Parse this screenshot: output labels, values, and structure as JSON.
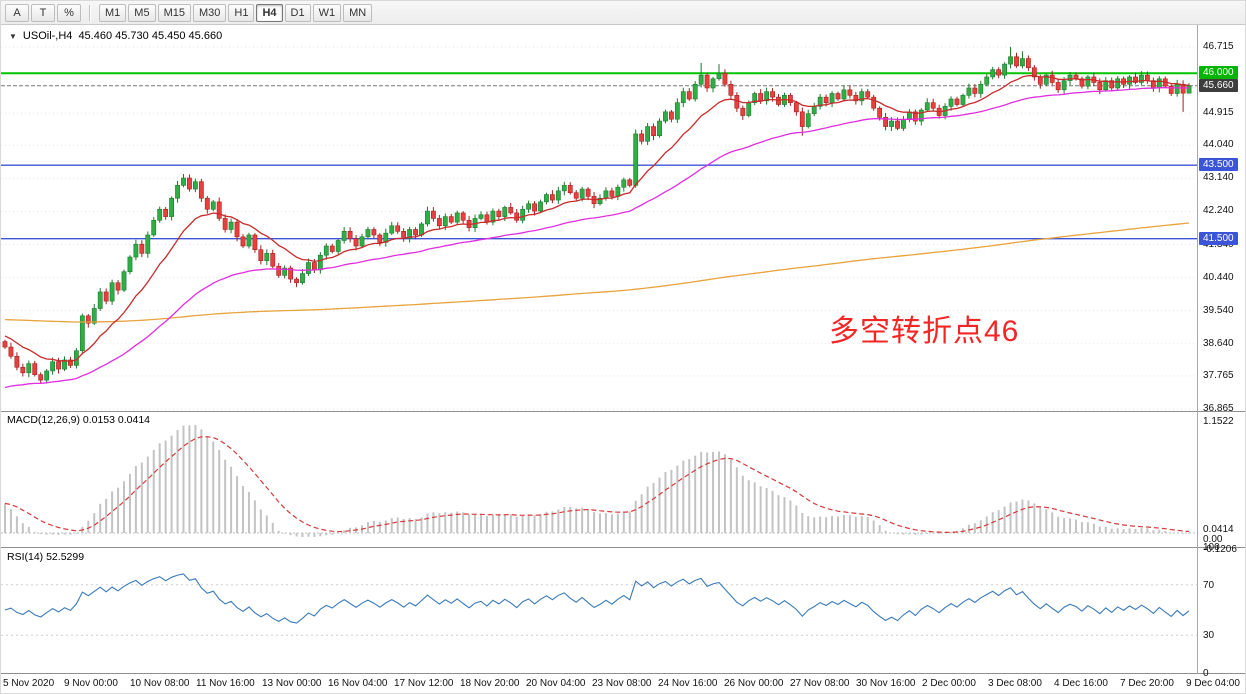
{
  "toolbar": {
    "tools": [
      {
        "name": "cursor-tool",
        "label": "A"
      },
      {
        "name": "text-tool",
        "label": "T"
      },
      {
        "name": "percent-tool",
        "label": "%"
      }
    ],
    "timeframes": [
      "M1",
      "M5",
      "M15",
      "M30",
      "H1",
      "H4",
      "D1",
      "W1",
      "MN"
    ],
    "active_timeframe": "H4"
  },
  "chart": {
    "title": {
      "symbol": "USOil-,H4",
      "ohlc": "45.460 45.730 45.450 45.660"
    },
    "annotation": {
      "text": "多空转折点46",
      "color": "#f42525"
    },
    "price_axis": {
      "labels": [
        "46.715",
        "44.915",
        "44.040",
        "43.140",
        "42.240",
        "41.340",
        "40.440",
        "39.540",
        "38.640",
        "37.765",
        "36.865"
      ],
      "badges": [
        {
          "value": "46.000",
          "color": "#00b400"
        },
        {
          "value": "45.660",
          "color": "#3d3d3d"
        },
        {
          "value": "43.500",
          "color": "#3c55d8"
        },
        {
          "value": "41.500",
          "color": "#3c55d8"
        }
      ]
    },
    "hlines": [
      {
        "price": 46.0,
        "color": "#00c400",
        "width": 2
      },
      {
        "price": 43.5,
        "color": "#3c55d8",
        "width": 1.4
      },
      {
        "price": 41.5,
        "color": "#3c55d8",
        "width": 1.4
      }
    ],
    "current_price": 45.66,
    "colors": {
      "up": "#2fae45",
      "up_border": "#1d7a2e",
      "down": "#e8403f",
      "down_border": "#a61f1f",
      "ma_fast": "#c92a2a",
      "ma_mid": "#e02ee0",
      "ma_slow": "#e8a33d"
    }
  },
  "macd": {
    "label": "MACD(12,26,9) 0.0153 0.0414",
    "axis_labels": [
      "1.1522",
      "0.0414",
      "0.00",
      "-0.1206"
    ]
  },
  "rsi": {
    "label": "RSI(14) 52.5299",
    "axis_labels": [
      "100",
      "70",
      "30",
      "0"
    ]
  },
  "time_axis": {
    "labels": [
      "5 Nov 2020",
      "9 Nov 00:00",
      "10 Nov 08:00",
      "11 Nov 16:00",
      "13 Nov 00:00",
      "16 Nov 04:00",
      "17 Nov 12:00",
      "18 Nov 20:00",
      "20 Nov 04:00",
      "23 Nov 08:00",
      "24 Nov 16:00",
      "26 Nov 00:00",
      "27 Nov 08:00",
      "30 Nov 16:00",
      "2 Dec 00:00",
      "3 Dec 08:00",
      "4 Dec 16:00",
      "7 Dec 20:00",
      "9 Dec 04:00"
    ]
  },
  "chart_data": {
    "type": "candlestick",
    "symbol": "USOil",
    "timeframe": "H4",
    "last_ohlc": {
      "open": 45.46,
      "high": 45.73,
      "low": 45.45,
      "close": 45.66
    },
    "horizontal_levels": [
      46.0,
      43.5,
      41.5
    ],
    "price_range_visible": [
      36.865,
      46.715
    ],
    "indicators": [
      {
        "name": "MACD",
        "params": [
          12,
          26,
          9
        ],
        "values": [
          0.0153,
          0.0414
        ],
        "range": [
          -0.1206,
          1.1522
        ]
      },
      {
        "name": "RSI",
        "params": [
          14
        ],
        "value": 52.5299,
        "range": [
          0,
          100
        ]
      }
    ],
    "first_open": 38.7,
    "closes": [
      38.55,
      38.3,
      38.0,
      37.85,
      38.1,
      37.8,
      37.65,
      37.9,
      38.15,
      37.95,
      38.2,
      38.05,
      38.45,
      39.4,
      39.2,
      39.6,
      40.05,
      39.8,
      40.3,
      40.1,
      40.6,
      41.0,
      41.35,
      41.1,
      41.6,
      42.0,
      42.3,
      42.1,
      42.6,
      42.95,
      43.15,
      42.85,
      43.05,
      42.6,
      42.3,
      42.5,
      42.05,
      41.75,
      41.95,
      41.55,
      41.3,
      41.6,
      41.2,
      40.9,
      41.1,
      40.75,
      40.5,
      40.7,
      40.4,
      40.3,
      40.55,
      40.85,
      40.65,
      41.05,
      41.3,
      41.15,
      41.45,
      41.7,
      41.5,
      41.3,
      41.55,
      41.75,
      41.6,
      41.4,
      41.65,
      41.85,
      41.7,
      41.5,
      41.75,
      41.6,
      41.9,
      42.25,
      42.05,
      41.85,
      42.1,
      41.95,
      42.2,
      42.0,
      41.8,
      42.05,
      42.15,
      41.95,
      42.25,
      42.1,
      42.35,
      42.2,
      42.0,
      42.3,
      42.45,
      42.25,
      42.5,
      42.7,
      42.55,
      42.8,
      42.95,
      42.75,
      42.6,
      42.85,
      42.65,
      42.45,
      42.6,
      42.8,
      42.65,
      42.9,
      43.1,
      42.95,
      44.35,
      44.15,
      44.55,
      44.3,
      44.7,
      44.95,
      44.75,
      45.2,
      45.5,
      45.3,
      45.7,
      45.95,
      45.6,
      45.85,
      46.0,
      45.7,
      45.4,
      45.05,
      44.85,
      45.2,
      45.45,
      45.25,
      45.5,
      45.35,
      45.15,
      45.4,
      45.2,
      44.95,
      44.55,
      44.9,
      45.1,
      45.35,
      45.2,
      45.45,
      45.3,
      45.55,
      45.4,
      45.25,
      45.5,
      45.35,
      45.05,
      44.8,
      44.55,
      44.7,
      44.5,
      44.75,
      44.95,
      44.7,
      45.0,
      45.2,
      45.05,
      44.85,
      45.1,
      45.3,
      45.15,
      45.4,
      45.6,
      45.45,
      45.7,
      45.9,
      46.1,
      45.95,
      46.25,
      46.45,
      46.2,
      46.4,
      46.15,
      45.9,
      45.7,
      45.95,
      45.75,
      45.55,
      45.8,
      45.95,
      45.85,
      45.65,
      45.9,
      45.75,
      45.55,
      45.8,
      45.6,
      45.85,
      45.7,
      45.9,
      45.75,
      45.95,
      45.8,
      45.6,
      45.85,
      45.65,
      45.45,
      45.7,
      45.46,
      45.66
    ],
    "wick_overrides": {
      "6": {
        "l": 37.55
      },
      "117": {
        "h": 46.28
      },
      "120": {
        "h": 46.25
      },
      "134": {
        "l": 44.3
      },
      "169": {
        "h": 46.72
      },
      "171": {
        "h": 46.6
      },
      "198": {
        "l": 44.95
      },
      "199": {
        "h": 45.73,
        "l": 45.45
      }
    }
  }
}
